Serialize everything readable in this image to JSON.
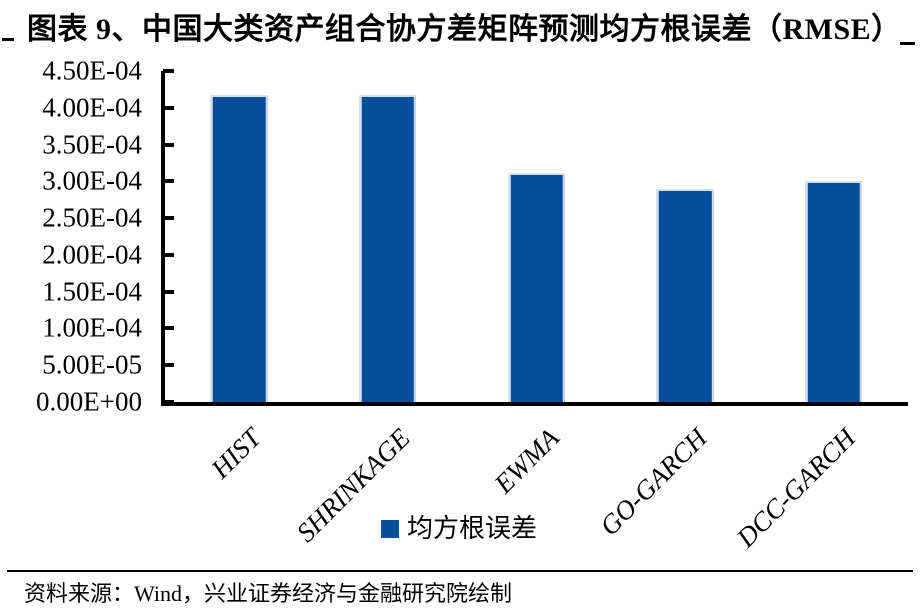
{
  "figure": {
    "title": "图表 9、中国大类资产组合协方差矩阵预测均方根误差（RMSE）",
    "source": "资料来源：Wind，兴业证券经济与金融研究院绘制"
  },
  "legend": {
    "label": "均方根误差"
  },
  "colors": {
    "bar": "#054e9a",
    "bar_edge": "#d5deeb",
    "axis": "#000000",
    "text": "#000000",
    "background": "#ffffff"
  },
  "chart_data": {
    "type": "bar",
    "title": "中国大类资产组合协方差矩阵预测均方根误差（RMSE）",
    "categories": [
      "HIST",
      "SHRINKAGE",
      "EWMA",
      "GO-GARCH",
      "DCC-GARCH"
    ],
    "series": [
      {
        "name": "均方根误差",
        "values": [
          0.000417,
          0.000417,
          0.000311,
          0.000289,
          0.0003
        ]
      }
    ],
    "xlabel": "",
    "ylabel": "",
    "ylim": [
      0,
      0.00045
    ],
    "ytick_labels": [
      "4.50E-04",
      "4.00E-04",
      "3.50E-04",
      "3.00E-04",
      "2.50E-04",
      "2.00E-04",
      "1.50E-04",
      "1.00E-04",
      "5.00E-05",
      "0.00E+00"
    ],
    "grid": false,
    "legend_position": "bottom",
    "bar_color": "#054e9a"
  }
}
